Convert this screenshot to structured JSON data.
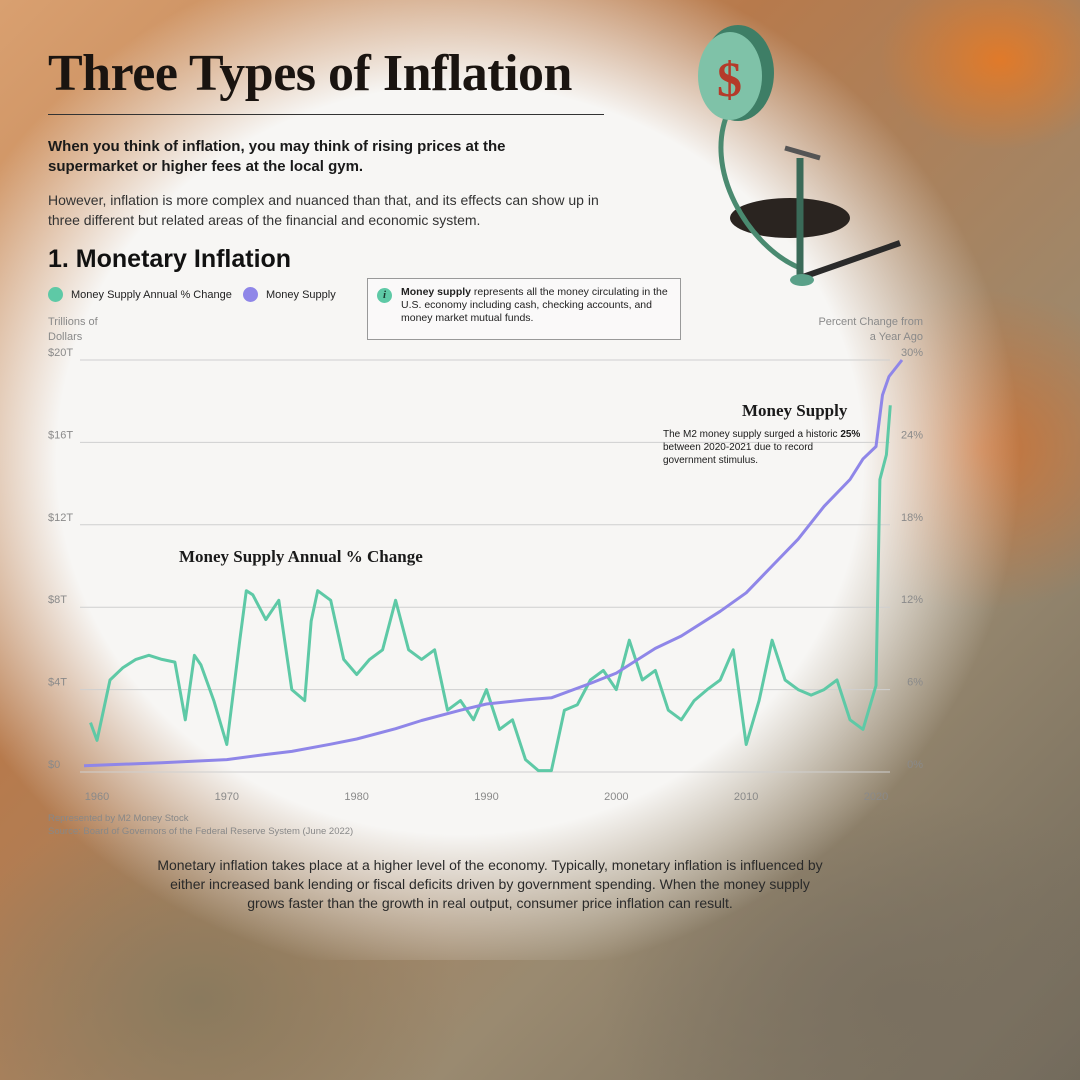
{
  "title": "Three Types of Inflation",
  "lead": "When you think of inflation, you may think of rising prices at the supermarket or higher fees at the local gym.",
  "sub": "However, inflation is more complex and nuanced than that, and its effects can show up in three different but related areas of the financial and economic system.",
  "section_title": "1. Monetary Inflation",
  "info_box": {
    "bold": "Money supply",
    "text": " represents all the money circulating in the U.S. economy including cash, checking accounts, and money market mutual funds.",
    "icon": "info-icon"
  },
  "annotations": {
    "pct_change_label": "Money Supply Annual % Change",
    "supply_label": "Money Supply",
    "supply_note_pre": "The M2 money supply surged a historic ",
    "supply_note_bold": "25%",
    "supply_note_post": " between 2020-2021 due to record government stimulus."
  },
  "source_lines": [
    "Represented by M2 Money Stock",
    "Source: Board of Governors of the Federal Reserve System (June 2022)"
  ],
  "footer": "Monetary inflation takes place at a higher level of the economy. Typically, monetary inflation is influenced by either increased bank lending or fiscal deficits driven by government spending. When the money supply grows faster than the growth in real output, consumer price inflation can result.",
  "illustration": "money-pump-coin-icon",
  "chart_data": {
    "type": "line",
    "xlabel": "",
    "ylabel_left": "Trillions of Dollars",
    "ylabel_right": "Percent Change from a Year Ago",
    "xlim": [
      1959,
      2022
    ],
    "ylim_left": [
      0,
      20
    ],
    "ylim_right": [
      0,
      30
    ],
    "x_ticks": [
      "1960",
      "1970",
      "1980",
      "1990",
      "2000",
      "2010",
      "2020"
    ],
    "y_ticks_left": [
      "$0",
      "$4T",
      "$8T",
      "$12T",
      "$16T",
      "$20T"
    ],
    "y_ticks_right": [
      "0%",
      "6%",
      "12%",
      "18%",
      "24%",
      "30%"
    ],
    "grid": true,
    "legend_position": "top-left",
    "series": [
      {
        "name": "Money Supply Annual % Change",
        "axis": "right",
        "color": "#5ec9a6",
        "x": [
          1959.5,
          1960,
          1961,
          1962,
          1963,
          1964,
          1965,
          1966,
          1966.8,
          1967.5,
          1968,
          1969,
          1970,
          1971,
          1971.5,
          1972,
          1973,
          1974,
          1975,
          1976,
          1976.5,
          1977,
          1978,
          1979,
          1980,
          1981,
          1982,
          1983,
          1984,
          1985,
          1986,
          1987,
          1988,
          1989,
          1990,
          1991,
          1992,
          1993,
          1994,
          1995,
          1996,
          1997,
          1998,
          1999,
          2000,
          2001,
          2002,
          2003,
          2004,
          2005,
          2006,
          2007,
          2008,
          2009,
          2010,
          2011,
          2012,
          2013,
          2014,
          2015,
          2016,
          2017,
          2018,
          2019,
          2020,
          2020.3,
          2020.8,
          2021.1
        ],
        "y": [
          3.6,
          2.3,
          6.7,
          7.6,
          8.2,
          8.5,
          8.2,
          8.0,
          3.8,
          8.5,
          7.8,
          5.2,
          2.0,
          9.6,
          13.2,
          12.9,
          11.1,
          12.5,
          6.0,
          5.2,
          11.0,
          13.2,
          12.5,
          8.2,
          7.1,
          8.2,
          8.9,
          12.5,
          8.9,
          8.2,
          8.9,
          4.5,
          5.2,
          3.8,
          6.0,
          3.1,
          3.8,
          0.9,
          0.1,
          0.1,
          4.5,
          4.9,
          6.7,
          7.4,
          6.0,
          9.6,
          6.7,
          7.4,
          4.5,
          3.8,
          5.2,
          6.0,
          6.7,
          8.9,
          2.0,
          5.2,
          9.6,
          6.7,
          6.0,
          5.6,
          6.0,
          6.7,
          3.8,
          3.1,
          6.3,
          21.3,
          23.1,
          26.7
        ]
      },
      {
        "name": "Money Supply",
        "axis": "left",
        "color": "#8f86e8",
        "x": [
          1959,
          1965,
          1970,
          1973,
          1975,
          1978,
          1980,
          1983,
          1985,
          1988,
          1990,
          1993,
          1995,
          1998,
          2000,
          2003,
          2005,
          2008,
          2010,
          2012,
          2014,
          2016,
          2018,
          2019,
          2020,
          2020.5,
          2021,
          2022
        ],
        "y": [
          0.3,
          0.45,
          0.6,
          0.85,
          1.0,
          1.35,
          1.6,
          2.1,
          2.5,
          3.0,
          3.3,
          3.5,
          3.6,
          4.3,
          4.8,
          6.0,
          6.6,
          7.8,
          8.7,
          10.0,
          11.3,
          12.9,
          14.2,
          15.2,
          15.8,
          18.3,
          19.2,
          20.0
        ]
      }
    ]
  }
}
